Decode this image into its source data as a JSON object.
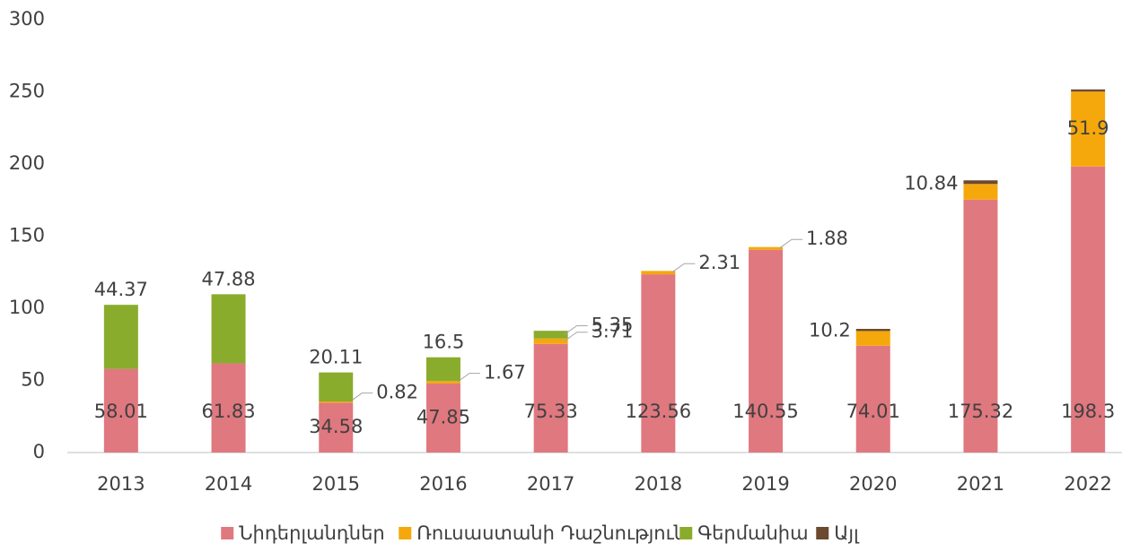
{
  "chart_data": {
    "type": "stacked_bar",
    "categories": [
      "2013",
      "2014",
      "2015",
      "2016",
      "2017",
      "2018",
      "2019",
      "2020",
      "2021",
      "2022"
    ],
    "series": [
      {
        "name": "Նիդերլանդներ",
        "color": "#e0787f",
        "values": [
          58.01,
          61.83,
          34.58,
          47.85,
          75.33,
          123.56,
          140.55,
          74.01,
          175.32,
          198.3
        ]
      },
      {
        "name": "Ռուսաստանի Դաշնություն",
        "color": "#f5a80c",
        "values": [
          null,
          null,
          0.82,
          1.67,
          3.71,
          2.31,
          1.88,
          10.2,
          10.84,
          51.9
        ]
      },
      {
        "name": "Գերմանիա",
        "color": "#8aac2c",
        "values": [
          44.37,
          47.88,
          20.11,
          16.5,
          5.35,
          null,
          null,
          null,
          null,
          null
        ]
      },
      {
        "name": "Այլ",
        "color": "#6b4a2f",
        "values": [
          null,
          null,
          null,
          null,
          null,
          null,
          null,
          1.5,
          2.5,
          1.5
        ],
        "data_labels": false
      }
    ],
    "ylim": [
      0,
      300
    ],
    "yticks": [
      0,
      50,
      100,
      150,
      200,
      250,
      300
    ],
    "grid": false,
    "legend": "bottom"
  }
}
